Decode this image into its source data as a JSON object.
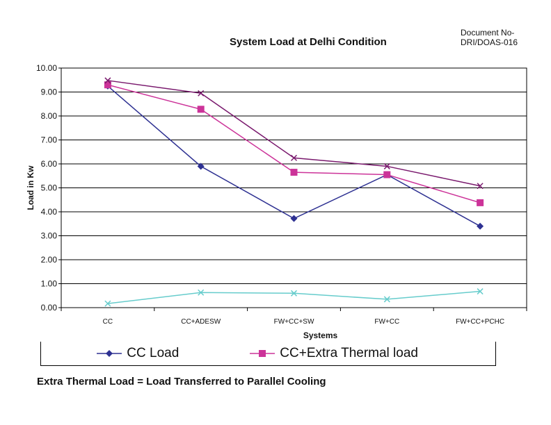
{
  "header": {
    "title": "System Load at Delhi Condition",
    "document_no_line1": "Document No-",
    "document_no_line2": "DRI/DOAS-016"
  },
  "footnote": "Extra Thermal Load = Load Transferred to Parallel Cooling",
  "colors": {
    "cc_load": "#2e3192",
    "cc_extra": "#cc3399",
    "series3": "#7a1a6e",
    "series4": "#66cccc"
  },
  "chart_data": {
    "type": "line",
    "title": "System Load at Delhi Condition",
    "xlabel": "Systems",
    "ylabel": "Load in Kw",
    "ylim": [
      0,
      10
    ],
    "ytick_labels": [
      "0.00",
      "1.00",
      "2.00",
      "3.00",
      "4.00",
      "5.00",
      "6.00",
      "7.00",
      "8.00",
      "9.00",
      "10.00"
    ],
    "categories": [
      "CC",
      "CC+ADESW",
      "FW+CC+SW",
      "FW+CC",
      "FW+CC+PCHC"
    ],
    "grid": true,
    "legend_position": "bottom",
    "series": [
      {
        "name": "CC Load",
        "marker": "diamond",
        "color_key": "cc_load",
        "values": [
          9.25,
          5.9,
          3.72,
          5.55,
          3.4
        ]
      },
      {
        "name": "CC+Extra Thermal load",
        "marker": "square",
        "color_key": "cc_extra",
        "values": [
          9.3,
          8.28,
          5.65,
          5.55,
          4.38
        ]
      },
      {
        "name": "",
        "marker": "x",
        "color_key": "series3",
        "values": [
          9.48,
          8.95,
          6.25,
          5.9,
          5.08
        ]
      },
      {
        "name": "",
        "marker": "x",
        "color_key": "series4",
        "values": [
          0.17,
          0.63,
          0.6,
          0.35,
          0.68
        ]
      }
    ]
  }
}
